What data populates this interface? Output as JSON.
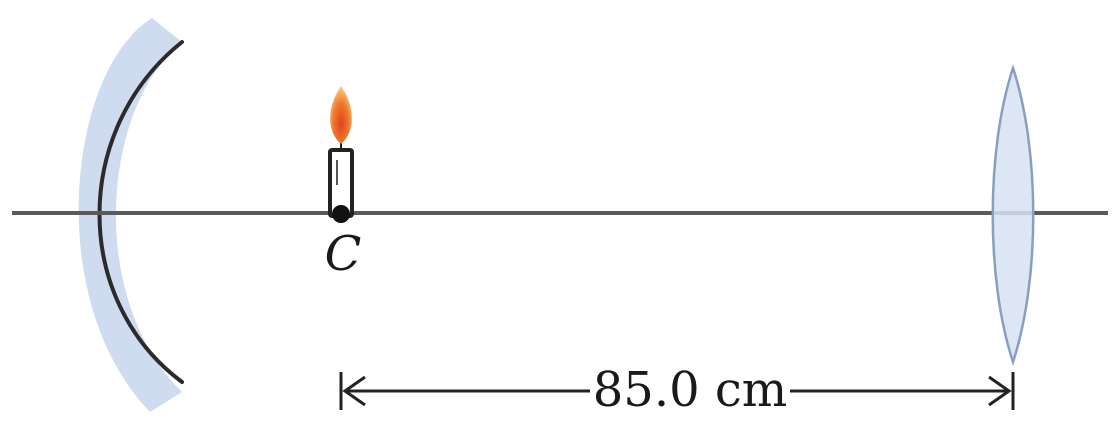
{
  "figure": {
    "point_label": "C",
    "distance_label": "85.0 cm"
  },
  "colors": {
    "axis": "#5a5a5a",
    "mirror_backing": "#cfdcf0",
    "mirror_surface": "#2b2b2b",
    "lens_fill": "#d6e2f2",
    "lens_outline": "#8a9fbf",
    "candle_body": "#ffffff",
    "candle_outline": "#222222",
    "flame_outer": "#f29a3a",
    "flame_inner": "#e0431f",
    "center_point": "#111111",
    "dimension_line": "#222222"
  },
  "icons": {
    "mirror": "concave-mirror-icon",
    "lens": "converging-lens-icon",
    "candle": "candle-icon",
    "flame": "flame-icon"
  }
}
